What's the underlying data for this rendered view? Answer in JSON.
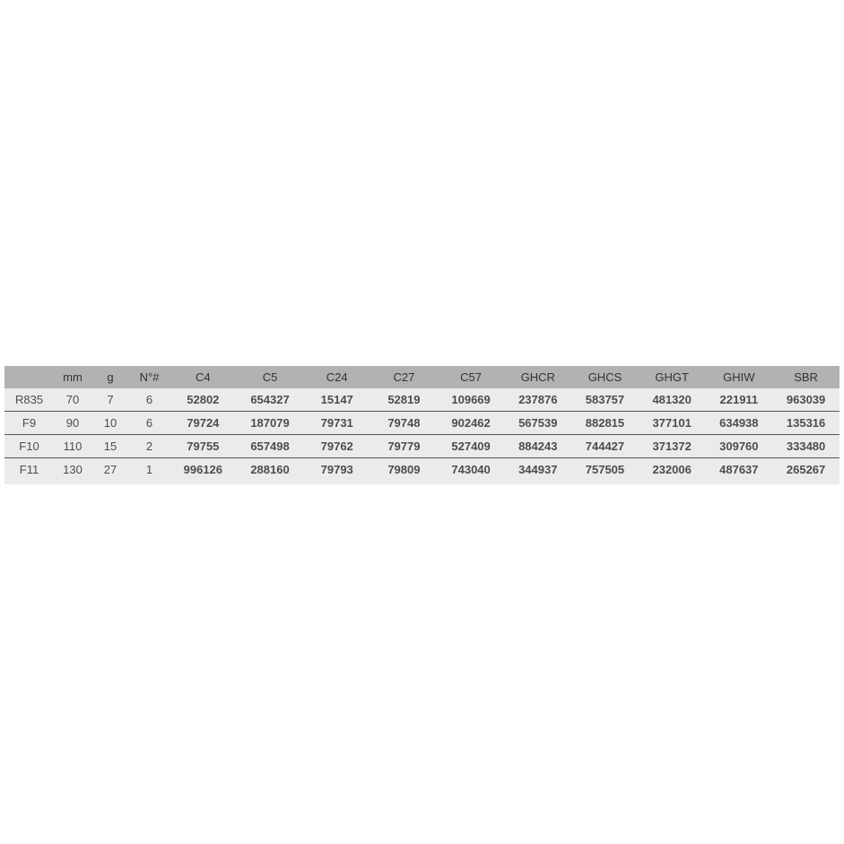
{
  "table": {
    "headers": [
      "",
      "mm",
      "g",
      "N°#",
      "C4",
      "C5",
      "C24",
      "C27",
      "C57",
      "GHCR",
      "GHCS",
      "GHGT",
      "GHIW",
      "SBR"
    ],
    "rows": [
      {
        "cells": [
          "R835",
          "70",
          "7",
          "6",
          "52802",
          "654327",
          "15147",
          "52819",
          "109669",
          "237876",
          "583757",
          "481320",
          "221911",
          "963039"
        ]
      },
      {
        "cells": [
          "F9",
          "90",
          "10",
          "6",
          "79724",
          "187079",
          "79731",
          "79748",
          "902462",
          "567539",
          "882815",
          "377101",
          "634938",
          "135316"
        ]
      },
      {
        "cells": [
          "F10",
          "110",
          "15",
          "2",
          "79755",
          "657498",
          "79762",
          "79779",
          "527409",
          "884243",
          "744427",
          "371372",
          "309760",
          "333480"
        ]
      },
      {
        "cells": [
          "F11",
          "130",
          "27",
          "1",
          "996126",
          "288160",
          "79793",
          "79809",
          "743040",
          "344937",
          "757505",
          "232006",
          "487637",
          "265267"
        ]
      }
    ]
  },
  "colors": {
    "header_bg": "#b2b2b2",
    "body_bg": "#ebebeb",
    "row_divider": "#58585a",
    "header_text": "#333333",
    "label_text": "#4d4d4d",
    "code_text": "#c62a59",
    "page_bg": "#ffffff"
  }
}
